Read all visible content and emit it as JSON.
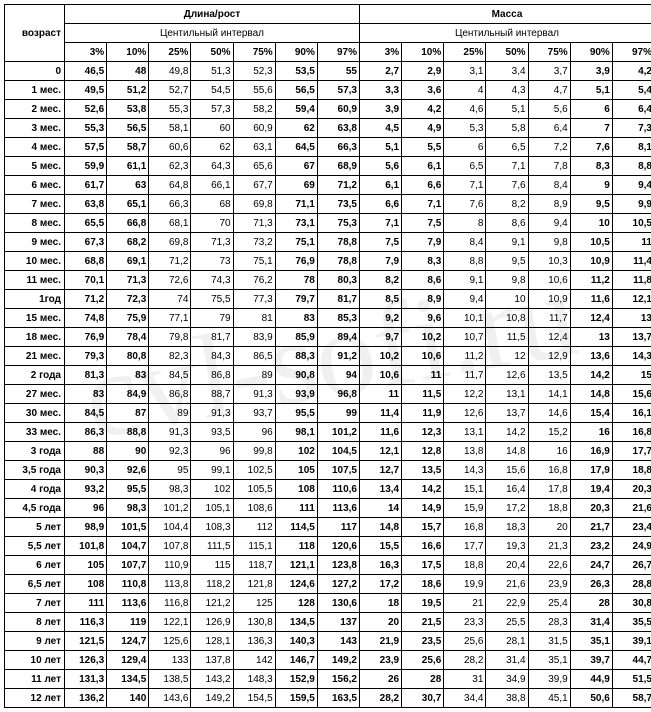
{
  "headers": {
    "age": "возраст",
    "length": "Длина/рост",
    "mass": "Масса",
    "centile": "Центильный  интервал",
    "centile2": "Центильный интервал",
    "percents": [
      "3%",
      "10%",
      "25%",
      "50%",
      "75%",
      "90%",
      "97%"
    ]
  },
  "boldCols": [
    0,
    1,
    5,
    6,
    7,
    8,
    12,
    13
  ],
  "rows": [
    {
      "age": "0",
      "v": [
        "46,5",
        "48",
        "49,8",
        "51,3",
        "52,3",
        "53,5",
        "55",
        "2,7",
        "2,9",
        "3,1",
        "3,4",
        "3,7",
        "3,9",
        "4,2"
      ]
    },
    {
      "age": "1 мес.",
      "v": [
        "49,5",
        "51,2",
        "52,7",
        "54,5",
        "55,6",
        "56,5",
        "57,3",
        "3,3",
        "3,6",
        "4",
        "4,3",
        "4,7",
        "5,1",
        "5,4"
      ]
    },
    {
      "age": "2 мес.",
      "v": [
        "52,6",
        "53,8",
        "55,3",
        "57,3",
        "58,2",
        "59,4",
        "60,9",
        "3,9",
        "4,2",
        "4,6",
        "5,1",
        "5,6",
        "6",
        "6,4"
      ]
    },
    {
      "age": "3 мес.",
      "v": [
        "55,3",
        "56,5",
        "58,1",
        "60",
        "60,9",
        "62",
        "63,8",
        "4,5",
        "4,9",
        "5,3",
        "5,8",
        "6,4",
        "7",
        "7,3"
      ]
    },
    {
      "age": "4 мес.",
      "v": [
        "57,5",
        "58,7",
        "60,6",
        "62",
        "63,1",
        "64,5",
        "66,3",
        "5,1",
        "5,5",
        "6",
        "6,5",
        "7,2",
        "7,6",
        "8,1"
      ]
    },
    {
      "age": "5 мес.",
      "v": [
        "59,9",
        "61,1",
        "62,3",
        "64,3",
        "65,6",
        "67",
        "68,9",
        "5,6",
        "6,1",
        "6,5",
        "7,1",
        "7,8",
        "8,3",
        "8,8"
      ]
    },
    {
      "age": "6 мес.",
      "v": [
        "61,7",
        "63",
        "64,8",
        "66,1",
        "67,7",
        "69",
        "71,2",
        "6,1",
        "6,6",
        "7,1",
        "7,6",
        "8,4",
        "9",
        "9,4"
      ]
    },
    {
      "age": "7 мес.",
      "v": [
        "63,8",
        "65,1",
        "66,3",
        "68",
        "69,8",
        "71,1",
        "73,5",
        "6,6",
        "7,1",
        "7,6",
        "8,2",
        "8,9",
        "9,5",
        "9,9"
      ]
    },
    {
      "age": "8 мес.",
      "v": [
        "65,5",
        "66,8",
        "68,1",
        "70",
        "71,3",
        "73,1",
        "75,3",
        "7,1",
        "7,5",
        "8",
        "8,6",
        "9,4",
        "10",
        "10,5"
      ]
    },
    {
      "age": "9 мес.",
      "v": [
        "67,3",
        "68,2",
        "69,8",
        "71,3",
        "73,2",
        "75,1",
        "78,8",
        "7,5",
        "7,9",
        "8,4",
        "9,1",
        "9,8",
        "10,5",
        "11"
      ]
    },
    {
      "age": "10 мес.",
      "v": [
        "68,8",
        "69,1",
        "71,2",
        "73",
        "75,1",
        "76,9",
        "78,8",
        "7,9",
        "8,3",
        "8,8",
        "9,5",
        "10,3",
        "10,9",
        "11,4"
      ]
    },
    {
      "age": "11 мес.",
      "v": [
        "70,1",
        "71,3",
        "72,6",
        "74,3",
        "76,2",
        "78",
        "80,3",
        "8,2",
        "8,6",
        "9,1",
        "9,8",
        "10,6",
        "11,2",
        "11,8"
      ]
    },
    {
      "age": "1год",
      "v": [
        "71,2",
        "72,3",
        "74",
        "75,5",
        "77,3",
        "79,7",
        "81,7",
        "8,5",
        "8,9",
        "9,4",
        "10",
        "10,9",
        "11,6",
        "12,1"
      ]
    },
    {
      "age": "15 мес.",
      "v": [
        "74,8",
        "75,9",
        "77,1",
        "79",
        "81",
        "83",
        "85,3",
        "9,2",
        "9,6",
        "10,1",
        "10,8",
        "11,7",
        "12,4",
        "13"
      ]
    },
    {
      "age": "18 мес.",
      "v": [
        "76,9",
        "78,4",
        "79,8",
        "81,7",
        "83,9",
        "85,9",
        "89,4",
        "9,7",
        "10,2",
        "10,7",
        "11,5",
        "12,4",
        "13",
        "13,7"
      ]
    },
    {
      "age": "21 мес.",
      "v": [
        "79,3",
        "80,8",
        "82,3",
        "84,3",
        "86,5",
        "88,3",
        "91,2",
        "10,2",
        "10,6",
        "11,2",
        "12",
        "12,9",
        "13,6",
        "14,3"
      ]
    },
    {
      "age": "2 года",
      "v": [
        "81,3",
        "83",
        "84,5",
        "86,8",
        "89",
        "90,8",
        "94",
        "10,6",
        "11",
        "11,7",
        "12,6",
        "13,5",
        "14,2",
        "15"
      ]
    },
    {
      "age": "27 мес.",
      "v": [
        "83",
        "84,9",
        "86,8",
        "88,7",
        "91,3",
        "93,9",
        "96,8",
        "11",
        "11,5",
        "12,2",
        "13,1",
        "14,1",
        "14,8",
        "15,6"
      ]
    },
    {
      "age": "30 мес.",
      "v": [
        "84,5",
        "87",
        "89",
        "91,3",
        "93,7",
        "95,5",
        "99",
        "11,4",
        "11,9",
        "12,6",
        "13,7",
        "14,6",
        "15,4",
        "16,1"
      ]
    },
    {
      "age": "33 мес.",
      "v": [
        "86,3",
        "88,8",
        "91,3",
        "93,5",
        "96",
        "98,1",
        "101,2",
        "11,6",
        "12,3",
        "13,1",
        "14,2",
        "15,2",
        "16",
        "16,8"
      ]
    },
    {
      "age": "3 года",
      "v": [
        "88",
        "90",
        "92,3",
        "96",
        "99,8",
        "102",
        "104,5",
        "12,1",
        "12,8",
        "13,8",
        "14,8",
        "16",
        "16,9",
        "17,7"
      ]
    },
    {
      "age": "3,5 года",
      "v": [
        "90,3",
        "92,6",
        "95",
        "99,1",
        "102,5",
        "105",
        "107,5",
        "12,7",
        "13,5",
        "14,3",
        "15,6",
        "16,8",
        "17,9",
        "18,8"
      ]
    },
    {
      "age": "4 года",
      "v": [
        "93,2",
        "95,5",
        "98,3",
        "102",
        "105,5",
        "108",
        "110,6",
        "13,4",
        "14,2",
        "15,1",
        "16,4",
        "17,8",
        "19,4",
        "20,3"
      ]
    },
    {
      "age": "4,5 года",
      "v": [
        "96",
        "98,3",
        "101,2",
        "105,1",
        "108,6",
        "111",
        "113,6",
        "14",
        "14,9",
        "15,9",
        "17,2",
        "18,8",
        "20,3",
        "21,6"
      ]
    },
    {
      "age": "5 лет",
      "v": [
        "98,9",
        "101,5",
        "104,4",
        "108,3",
        "112",
        "114,5",
        "117",
        "14,8",
        "15,7",
        "16,8",
        "18,3",
        "20",
        "21,7",
        "23,4"
      ]
    },
    {
      "age": "5,5 лет",
      "v": [
        "101,8",
        "104,7",
        "107,8",
        "111,5",
        "115,1",
        "118",
        "120,6",
        "15,5",
        "16,6",
        "17,7",
        "19,3",
        "21,3",
        "23,2",
        "24,9"
      ]
    },
    {
      "age": "6 лет",
      "v": [
        "105",
        "107,7",
        "110,9",
        "115",
        "118,7",
        "121,1",
        "123,8",
        "16,3",
        "17,5",
        "18,8",
        "20,4",
        "22,6",
        "24,7",
        "26,7"
      ]
    },
    {
      "age": "6,5 лет",
      "v": [
        "108",
        "110,8",
        "113,8",
        "118,2",
        "121,8",
        "124,6",
        "127,2",
        "17,2",
        "18,6",
        "19,9",
        "21,6",
        "23,9",
        "26,3",
        "28,8"
      ]
    },
    {
      "age": "7 лет",
      "v": [
        "111",
        "113,6",
        "116,8",
        "121,2",
        "125",
        "128",
        "130,6",
        "18",
        "19,5",
        "21",
        "22,9",
        "25,4",
        "28",
        "30,8"
      ]
    },
    {
      "age": "8 лет",
      "v": [
        "116,3",
        "119",
        "122,1",
        "126,9",
        "130,8",
        "134,5",
        "137",
        "20",
        "21,5",
        "23,3",
        "25,5",
        "28,3",
        "31,4",
        "35,5"
      ]
    },
    {
      "age": "9 лет",
      "v": [
        "121,5",
        "124,7",
        "125,6",
        "128,1",
        "136,3",
        "140,3",
        "143",
        "21,9",
        "23,5",
        "25,6",
        "28,1",
        "31,5",
        "35,1",
        "39,1"
      ]
    },
    {
      "age": "10 лет",
      "v": [
        "126,3",
        "129,4",
        "133",
        "137,8",
        "142",
        "146,7",
        "149,2",
        "23,9",
        "25,6",
        "28,2",
        "31,4",
        "35,1",
        "39,7",
        "44,7"
      ]
    },
    {
      "age": "11 лет",
      "v": [
        "131,3",
        "134,5",
        "138,5",
        "143,2",
        "148,3",
        "152,9",
        "156,2",
        "26",
        "28",
        "31",
        "34,9",
        "39,9",
        "44,9",
        "51,5"
      ]
    },
    {
      "age": "12 лет",
      "v": [
        "136,2",
        "140",
        "143,6",
        "149,2",
        "154,5",
        "159,5",
        "163,5",
        "28,2",
        "30,7",
        "34,4",
        "38,8",
        "45,1",
        "50,6",
        "58,7"
      ]
    }
  ],
  "watermark": "cvl-sofi.ru"
}
